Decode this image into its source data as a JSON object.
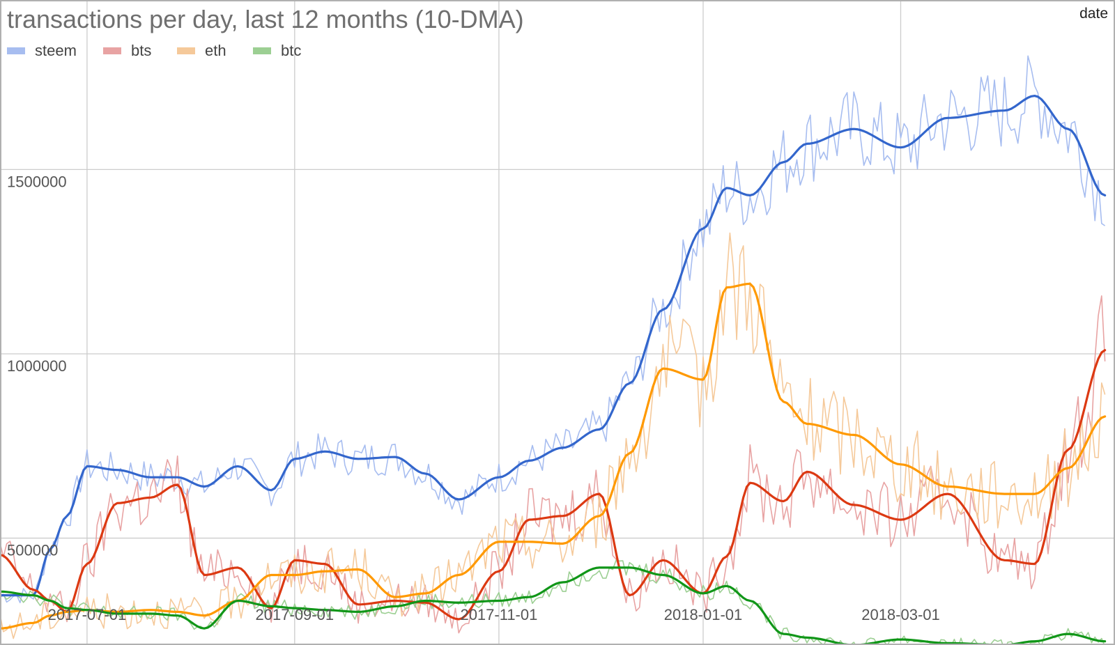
{
  "chart_data": {
    "type": "line",
    "title": "transactions per day, last 12 months (10-DMA)",
    "xlabel": "date",
    "ylabel": "",
    "x_range": [
      "2017-06-05",
      "2018-05-04"
    ],
    "ylim": [
      210000,
      1960000
    ],
    "y_ticks": [
      500000,
      1000000,
      1500000
    ],
    "y_tick_labels": [
      "500000",
      "1000000",
      "1500000"
    ],
    "x_ticks": [
      "2017-07-01",
      "2017-09-01",
      "2017-11-01",
      "2018-01-01",
      "2018-03-01"
    ],
    "x_tick_labels": [
      "2017-07-01",
      "2017-09-01",
      "2017-11-01",
      "2018-01-01",
      "2018-03-01"
    ],
    "grid": true,
    "legend_position": "top-left",
    "x": [
      "2017-06-05",
      "2017-06-15",
      "2017-06-20",
      "2017-06-25",
      "2017-07-01",
      "2017-07-10",
      "2017-07-20",
      "2017-07-28",
      "2017-08-05",
      "2017-08-15",
      "2017-08-25",
      "2017-09-01",
      "2017-09-10",
      "2017-09-20",
      "2017-10-01",
      "2017-10-10",
      "2017-10-20",
      "2017-11-01",
      "2017-11-10",
      "2017-11-20",
      "2017-12-01",
      "2017-12-10",
      "2017-12-20",
      "2018-01-01",
      "2018-01-08",
      "2018-01-15",
      "2018-01-25",
      "2018-02-01",
      "2018-02-15",
      "2018-03-01",
      "2018-03-15",
      "2018-04-01",
      "2018-04-10",
      "2018-04-20",
      "2018-05-01"
    ],
    "series": [
      {
        "name": "steem",
        "color": "#3366cc",
        "light_color": "#a7bdf0",
        "values": [
          345000,
          345000,
          470000,
          560000,
          695000,
          685000,
          665000,
          665000,
          640000,
          695000,
          630000,
          715000,
          735000,
          715000,
          720000,
          675000,
          605000,
          665000,
          710000,
          745000,
          795000,
          920000,
          1120000,
          1340000,
          1450000,
          1430000,
          1520000,
          1570000,
          1610000,
          1560000,
          1640000,
          1660000,
          1700000,
          1610000,
          1430000
        ]
      },
      {
        "name": "bts",
        "color": "#dc3912",
        "light_color": "#e8a3a3",
        "values": [
          455000,
          360000,
          330000,
          300000,
          430000,
          595000,
          610000,
          645000,
          400000,
          420000,
          310000,
          440000,
          430000,
          320000,
          330000,
          325000,
          280000,
          410000,
          550000,
          560000,
          620000,
          345000,
          440000,
          350000,
          450000,
          650000,
          600000,
          680000,
          590000,
          550000,
          620000,
          440000,
          430000,
          740000,
          1010000
        ]
      },
      {
        "name": "eth",
        "color": "#ff9900",
        "light_color": "#f5c99a",
        "values": [
          255000,
          270000,
          290000,
          300000,
          305000,
          300000,
          305000,
          300000,
          290000,
          330000,
          400000,
          400000,
          410000,
          415000,
          340000,
          350000,
          400000,
          490000,
          490000,
          485000,
          560000,
          730000,
          960000,
          930000,
          1180000,
          1190000,
          870000,
          810000,
          780000,
          700000,
          640000,
          620000,
          620000,
          690000,
          830000
        ]
      },
      {
        "name": "btc",
        "color": "#109618",
        "light_color": "#9ccf93",
        "values": [
          355000,
          345000,
          330000,
          310000,
          305000,
          295000,
          295000,
          290000,
          255000,
          330000,
          315000,
          310000,
          305000,
          300000,
          315000,
          330000,
          325000,
          330000,
          340000,
          380000,
          420000,
          420000,
          400000,
          350000,
          370000,
          330000,
          240000,
          230000,
          210000,
          225000,
          215000,
          210000,
          220000,
          240000,
          220000
        ]
      }
    ]
  }
}
